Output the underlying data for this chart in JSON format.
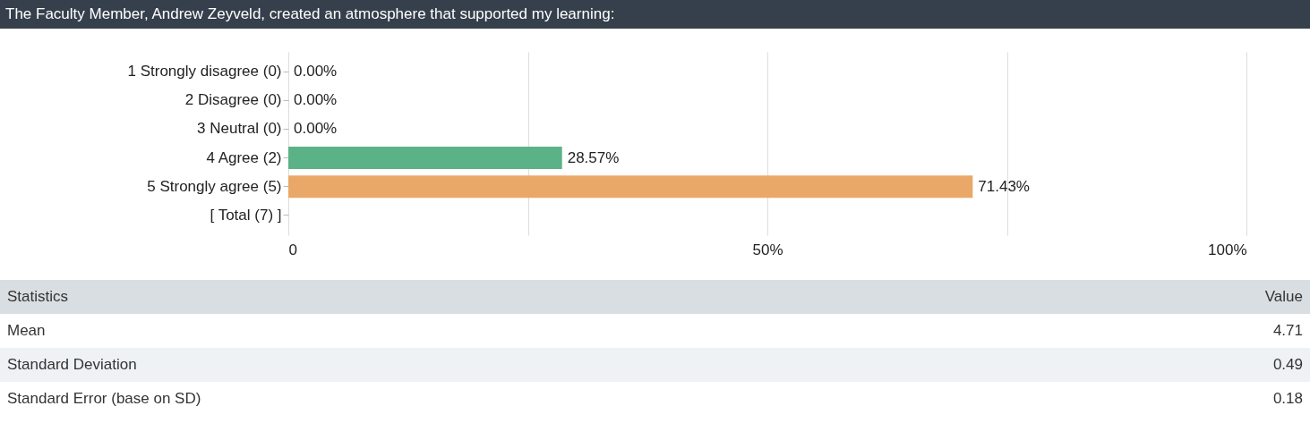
{
  "chart_data": {
    "type": "bar",
    "orientation": "horizontal",
    "title": "The Faculty Member, Andrew Zeyveld, created an atmosphere that supported my learning:",
    "categories": [
      "1 Strongly disagree (0)",
      "2 Disagree (0)",
      "3 Neutral (0)",
      "4 Agree (2)",
      "5 Strongly agree (5)",
      "[ Total (7) ]"
    ],
    "values": [
      0,
      0,
      0,
      28.57,
      71.43,
      null
    ],
    "colors": [
      null,
      null,
      null,
      "#5bb286",
      "#e9a868",
      null
    ],
    "value_labels": [
      "0.00%",
      "0.00%",
      "0.00%",
      "28.57%",
      "71.43%",
      null
    ],
    "xlim": [
      0,
      100
    ],
    "xticks": [
      0,
      {
        "value": 25,
        "label": null
      },
      {
        "value": 50,
        "label": "50%"
      },
      {
        "value": 75,
        "label": null
      },
      {
        "value": 100,
        "label": "100%"
      }
    ],
    "grid": "x",
    "annotations": [
      "Statistics",
      "Value",
      "Mean",
      "4.71",
      "Standard Deviation",
      "0.49",
      "Standard Error (base on SD)",
      "0.18"
    ]
  }
}
